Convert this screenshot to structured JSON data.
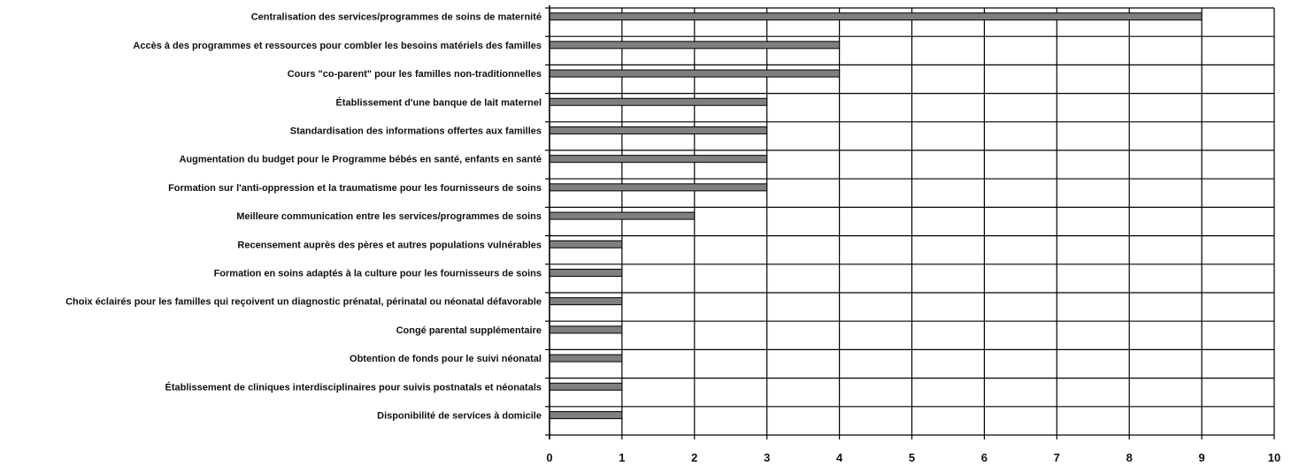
{
  "chart_data": {
    "type": "bar",
    "orientation": "horizontal",
    "title": "",
    "xlabel": "",
    "ylabel": "",
    "xlim": [
      0,
      10
    ],
    "x_ticks": [
      0,
      1,
      2,
      3,
      4,
      5,
      6,
      7,
      8,
      9,
      10
    ],
    "grid": true,
    "legend": "none",
    "colors": {
      "bar_fill": "#7f7f7f",
      "bar_stroke": "#000000",
      "grid": "#000000",
      "text": "#111111",
      "background": "#ffffff"
    },
    "categories": [
      "Centralisation des services/programmes de soins de maternité",
      "Accès à des programmes et ressources pour combler les besoins matériels des familles",
      "Cours \"co-parent\" pour les familles non-traditionnelles",
      "Établissement d'une banque de lait maternel",
      "Standardisation des informations offertes aux familles",
      "Augmentation du budget pour le Programme bébés en santé, enfants en santé",
      "Formation sur l'anti-oppression et la traumatisme pour les fournisseurs de soins",
      "Meilleure communication entre les services/programmes de soins",
      "Recensement auprès des pères et autres populations vulnérables",
      "Formation en soins adaptés à la culture pour les fournisseurs de soins",
      "Choix éclairés pour les familles qui reçoivent un diagnostic prénatal, périnatal ou néonatal défavorable",
      "Congé parental supplémentaire",
      "Obtention de fonds pour le suivi néonatal",
      "Établissement de cliniques interdisciplinaires pour suivis postnatals et néonatals",
      "Disponibilité de services à domicile"
    ],
    "values": [
      9,
      4,
      4,
      3,
      3,
      3,
      3,
      2,
      1,
      1,
      1,
      1,
      1,
      1,
      1
    ]
  }
}
